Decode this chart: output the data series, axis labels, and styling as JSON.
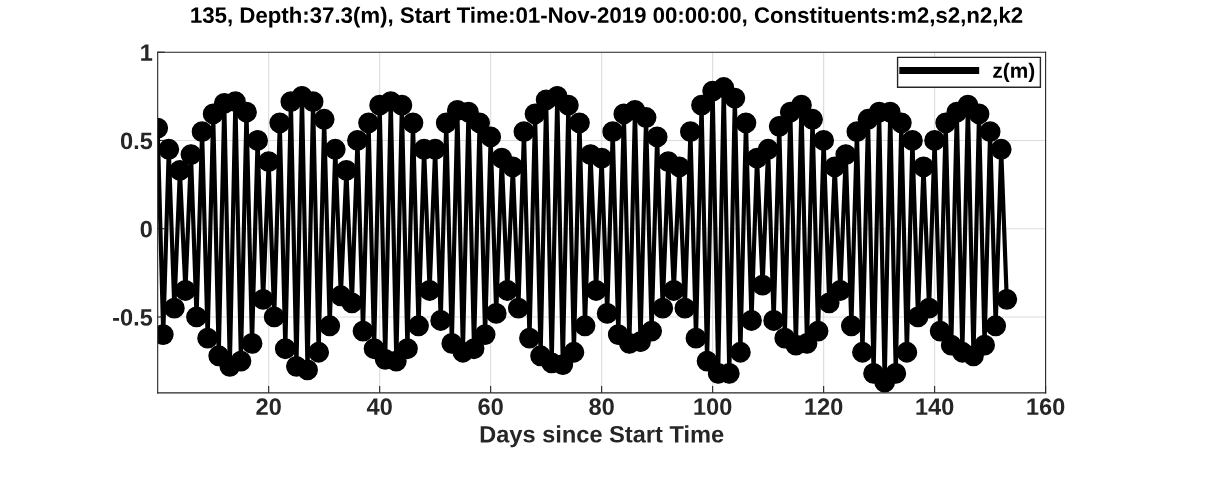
{
  "chart_data": {
    "type": "line",
    "title": "135, Depth:37.3(m), Start Time:01-Nov-2019 00:00:00, Constituents:m2,s2,n2,k2",
    "xlabel": "Days since Start Time",
    "x": [
      0,
      1,
      2,
      3,
      4,
      5,
      6,
      7,
      8,
      9,
      10,
      11,
      12,
      13,
      14,
      15,
      16,
      17,
      18,
      19,
      20,
      21,
      22,
      23,
      24,
      25,
      26,
      27,
      28,
      29,
      30,
      31,
      32,
      33,
      34,
      35,
      36,
      37,
      38,
      39,
      40,
      41,
      42,
      43,
      44,
      45,
      46,
      47,
      48,
      49,
      50,
      51,
      52,
      53,
      54,
      55,
      56,
      57,
      58,
      59,
      60,
      61,
      62,
      63,
      64,
      65,
      66,
      67,
      68,
      69,
      70,
      71,
      72,
      73,
      74,
      75,
      76,
      77,
      78,
      79,
      80,
      81,
      82,
      83,
      84,
      85,
      86,
      87,
      88,
      89,
      90,
      91,
      92,
      93,
      94,
      95,
      96,
      97,
      98,
      99,
      100,
      101,
      102,
      103,
      104,
      105,
      106,
      107,
      108,
      109,
      110,
      111,
      112,
      113,
      114,
      115,
      116,
      117,
      118,
      119,
      120,
      121,
      122,
      123,
      124,
      125,
      126,
      127,
      128,
      129,
      130,
      131,
      132,
      133,
      134,
      135,
      136,
      137,
      138,
      139,
      140,
      141,
      142,
      143,
      144,
      145,
      146,
      147,
      148,
      149,
      150,
      151,
      152,
      153
    ],
    "series": [
      {
        "name": "z(m)",
        "color": "#000000",
        "values": [
          0.57,
          -0.6,
          0.45,
          -0.45,
          0.33,
          -0.35,
          0.42,
          -0.5,
          0.55,
          -0.62,
          0.65,
          -0.72,
          0.71,
          -0.78,
          0.72,
          -0.75,
          0.66,
          -0.65,
          0.5,
          -0.4,
          0.38,
          -0.5,
          0.6,
          -0.68,
          0.72,
          -0.78,
          0.75,
          -0.8,
          0.72,
          -0.7,
          0.62,
          -0.55,
          0.45,
          -0.38,
          0.33,
          -0.42,
          0.5,
          -0.58,
          0.6,
          -0.68,
          0.7,
          -0.74,
          0.72,
          -0.75,
          0.7,
          -0.68,
          0.6,
          -0.55,
          0.45,
          -0.35,
          0.45,
          -0.52,
          0.6,
          -0.65,
          0.67,
          -0.7,
          0.66,
          -0.68,
          0.6,
          -0.6,
          0.52,
          -0.48,
          0.4,
          -0.35,
          0.35,
          -0.45,
          0.55,
          -0.62,
          0.65,
          -0.72,
          0.73,
          -0.76,
          0.75,
          -0.77,
          0.7,
          -0.7,
          0.6,
          -0.55,
          0.42,
          -0.35,
          0.4,
          -0.48,
          0.55,
          -0.6,
          0.65,
          -0.65,
          0.67,
          -0.64,
          0.63,
          -0.58,
          0.52,
          -0.45,
          0.38,
          -0.35,
          0.35,
          -0.45,
          0.55,
          -0.62,
          0.7,
          -0.75,
          0.78,
          -0.82,
          0.8,
          -0.82,
          0.74,
          -0.7,
          0.6,
          -0.52,
          0.4,
          -0.32,
          0.45,
          -0.52,
          0.58,
          -0.62,
          0.66,
          -0.66,
          0.7,
          -0.65,
          0.62,
          -0.58,
          0.5,
          -0.42,
          0.35,
          -0.35,
          0.42,
          -0.55,
          0.55,
          -0.7,
          0.62,
          -0.82,
          0.66,
          -0.87,
          0.66,
          -0.82,
          0.6,
          -0.7,
          0.5,
          -0.5,
          0.35,
          -0.45,
          0.5,
          -0.58,
          0.6,
          -0.66,
          0.66,
          -0.7,
          0.7,
          -0.72,
          0.65,
          -0.66,
          0.55,
          -0.55,
          0.45,
          -0.4
        ]
      }
    ],
    "xlim": [
      0,
      160
    ],
    "xticks": [
      20,
      40,
      60,
      80,
      100,
      120,
      140,
      160
    ],
    "ylim": [
      -0.93,
      1
    ],
    "yticks": [
      {
        "value": -0.5,
        "label": "-0.5"
      },
      0,
      0.5,
      1
    ],
    "grid": true,
    "legend": "top right",
    "marker": "circle",
    "line_style": "solid"
  }
}
